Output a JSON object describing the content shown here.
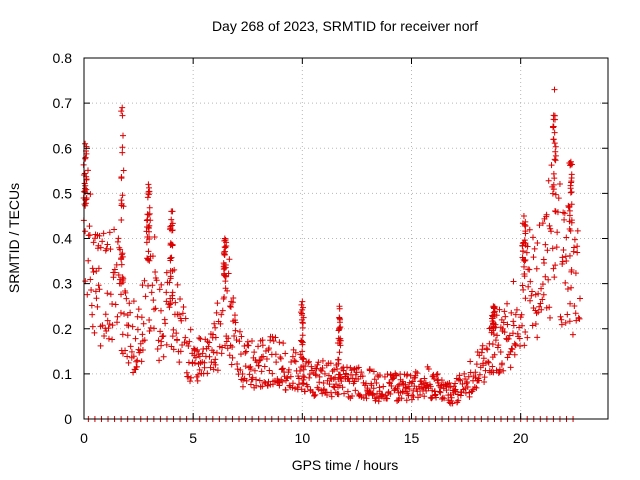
{
  "chart_data": {
    "type": "scatter",
    "title": "Day 268 of 2023, SRMTID for receiver norf",
    "xlabel": "GPS time / hours",
    "ylabel": "SRMTID / TECUs",
    "xlim": [
      0,
      24
    ],
    "ylim": [
      0,
      0.8
    ],
    "x_ticks": [
      0,
      5,
      10,
      15,
      20
    ],
    "y_ticks": [
      0,
      0.1,
      0.2,
      0.3,
      0.4,
      0.5,
      0.6,
      0.7,
      0.8
    ],
    "x_tick_labels": [
      "0",
      "5",
      "10",
      "15",
      "20"
    ],
    "y_tick_labels": [
      "0",
      "0.1",
      "0.2",
      "0.3",
      "0.4",
      "0.5",
      "0.6",
      "0.7",
      "0.8"
    ],
    "grid": true,
    "marker": "plus",
    "marker_color": "#dd0000",
    "series": [
      {
        "name": "SRMTID",
        "envelope": [
          [
            0.0,
            0.45
          ],
          [
            0.3,
            0.35
          ],
          [
            0.6,
            0.3
          ],
          [
            1.0,
            0.28
          ],
          [
            1.5,
            0.3
          ],
          [
            2.0,
            0.2
          ],
          [
            2.5,
            0.17
          ],
          [
            3.0,
            0.35
          ],
          [
            3.5,
            0.2
          ],
          [
            4.0,
            0.25
          ],
          [
            4.5,
            0.18
          ],
          [
            5.0,
            0.13
          ],
          [
            5.5,
            0.12
          ],
          [
            6.0,
            0.15
          ],
          [
            6.5,
            0.3
          ],
          [
            7.0,
            0.14
          ],
          [
            7.5,
            0.12
          ],
          [
            8.0,
            0.12
          ],
          [
            8.5,
            0.13
          ],
          [
            9.0,
            0.12
          ],
          [
            9.5,
            0.11
          ],
          [
            10.0,
            0.1
          ],
          [
            10.5,
            0.09
          ],
          [
            11.0,
            0.09
          ],
          [
            11.5,
            0.09
          ],
          [
            12.0,
            0.08
          ],
          [
            12.5,
            0.08
          ],
          [
            13.0,
            0.08
          ],
          [
            13.5,
            0.07
          ],
          [
            14.0,
            0.07
          ],
          [
            14.5,
            0.07
          ],
          [
            15.0,
            0.07
          ],
          [
            15.5,
            0.08
          ],
          [
            16.0,
            0.08
          ],
          [
            16.5,
            0.06
          ],
          [
            17.0,
            0.06
          ],
          [
            17.5,
            0.08
          ],
          [
            18.0,
            0.11
          ],
          [
            18.5,
            0.14
          ],
          [
            19.0,
            0.17
          ],
          [
            19.5,
            0.18
          ],
          [
            20.0,
            0.28
          ],
          [
            20.5,
            0.3
          ],
          [
            21.0,
            0.32
          ],
          [
            21.5,
            0.42
          ],
          [
            22.0,
            0.35
          ],
          [
            22.5,
            0.3
          ],
          [
            22.8,
            0.28
          ]
        ],
        "peaks": [
          [
            0.05,
            0.61
          ],
          [
            1.75,
            0.69
          ],
          [
            2.95,
            0.52
          ],
          [
            4.0,
            0.46
          ],
          [
            6.45,
            0.4
          ],
          [
            10.0,
            0.26
          ],
          [
            11.7,
            0.25
          ],
          [
            18.75,
            0.25
          ],
          [
            20.15,
            0.45
          ],
          [
            21.55,
            0.73
          ],
          [
            22.3,
            0.57
          ]
        ],
        "floor_value": 0,
        "floor_range": [
          0.2,
          22.6
        ]
      }
    ]
  }
}
